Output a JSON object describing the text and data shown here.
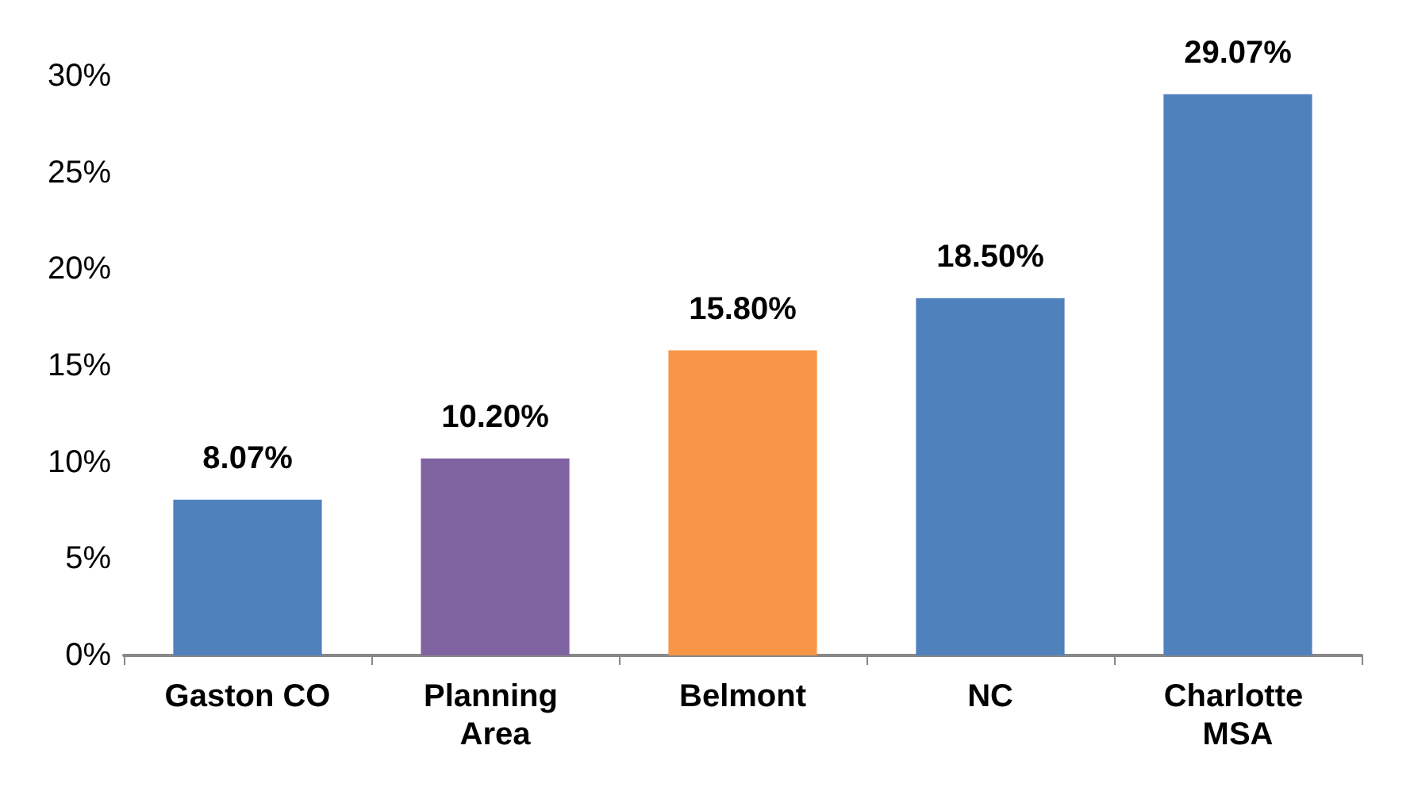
{
  "chart_data": {
    "type": "bar",
    "categories": [
      "Gaston CO",
      "Planning Area",
      "Belmont",
      "NC",
      "Charlotte MSA"
    ],
    "values": [
      8.07,
      10.2,
      15.8,
      18.5,
      29.07
    ],
    "colors": [
      "#4f81bd",
      "#8064a2",
      "#f79646",
      "#4f81bd",
      "#4f81bd"
    ],
    "value_labels": [
      "8.07%",
      "10.20%",
      "15.80%",
      "18.50%",
      "29.07%"
    ],
    "ylim": [
      0,
      30
    ],
    "yticks": [
      {
        "value": 0,
        "label": "0%"
      },
      {
        "value": 5,
        "label": "5%"
      },
      {
        "value": 10,
        "label": "10%"
      },
      {
        "value": 15,
        "label": "15%"
      },
      {
        "value": 20,
        "label": "20%"
      },
      {
        "value": 25,
        "label": "25%"
      },
      {
        "value": 30,
        "label": "30%"
      }
    ],
    "grid": false
  }
}
